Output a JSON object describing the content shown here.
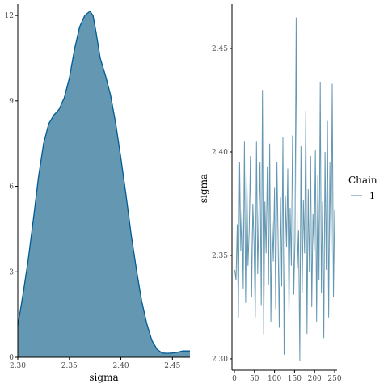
{
  "chart_data": [
    {
      "type": "area",
      "xlabel": "sigma",
      "ylabel": "",
      "xlim": [
        2.3,
        2.467
      ],
      "ylim": [
        0,
        12.4
      ],
      "xticks": [
        2.3,
        2.35,
        2.4,
        2.45
      ],
      "xtick_labels": [
        "2.30",
        "2.35",
        "2.40",
        "2.45"
      ],
      "yticks": [
        0,
        3,
        6,
        9,
        12
      ],
      "ytick_labels": [
        "0",
        "3",
        "6",
        "9",
        "12"
      ],
      "fill_color": "#6497b1",
      "line_color": "#005b96",
      "x": [
        2.3,
        2.305,
        2.31,
        2.315,
        2.32,
        2.325,
        2.33,
        2.335,
        2.34,
        2.345,
        2.35,
        2.355,
        2.36,
        2.365,
        2.37,
        2.373,
        2.376,
        2.38,
        2.385,
        2.39,
        2.395,
        2.4,
        2.405,
        2.41,
        2.415,
        2.42,
        2.425,
        2.43,
        2.435,
        2.44,
        2.445,
        2.45,
        2.455,
        2.46,
        2.467
      ],
      "y": [
        1.1,
        2.2,
        3.4,
        4.8,
        6.3,
        7.5,
        8.2,
        8.5,
        8.7,
        9.1,
        9.8,
        10.8,
        11.6,
        12.0,
        12.15,
        12.0,
        11.4,
        10.5,
        9.9,
        9.2,
        8.2,
        7.0,
        5.7,
        4.3,
        3.1,
        2.0,
        1.2,
        0.6,
        0.28,
        0.15,
        0.14,
        0.15,
        0.18,
        0.22,
        0.22
      ]
    },
    {
      "type": "line",
      "xlabel": "",
      "ylabel": "sigma",
      "xlim": [
        -6,
        256
      ],
      "ylim": [
        2.2945,
        2.4715
      ],
      "xticks": [
        0,
        50,
        100,
        150,
        200,
        250
      ],
      "xtick_labels": [
        "0",
        "50",
        "100",
        "150",
        "200",
        "250"
      ],
      "yticks": [
        2.3,
        2.35,
        2.4,
        2.45
      ],
      "ytick_labels": [
        "2.30",
        "2.35",
        "2.40",
        "2.45"
      ],
      "legend_position": "right",
      "legend_title": "Chain",
      "series": [
        {
          "name": "1",
          "color": "#6497b1",
          "x": [
            1,
            4,
            7,
            10,
            13,
            16,
            19,
            22,
            25,
            28,
            31,
            34,
            37,
            40,
            43,
            46,
            49,
            52,
            55,
            58,
            61,
            64,
            67,
            70,
            73,
            76,
            79,
            82,
            85,
            88,
            91,
            94,
            97,
            100,
            103,
            106,
            109,
            112,
            115,
            118,
            121,
            124,
            127,
            130,
            133,
            136,
            139,
            142,
            145,
            148,
            151,
            154,
            157,
            160,
            163,
            166,
            169,
            172,
            175,
            178,
            181,
            184,
            187,
            190,
            193,
            196,
            199,
            202,
            205,
            208,
            211,
            214,
            217,
            220,
            223,
            226,
            229,
            232,
            235,
            238,
            241,
            244,
            247,
            250
          ],
          "values": [
            2.343,
            2.338,
            2.365,
            2.32,
            2.395,
            2.352,
            2.372,
            2.334,
            2.405,
            2.327,
            2.388,
            2.345,
            2.362,
            2.398,
            2.33,
            2.375,
            2.356,
            2.32,
            2.405,
            2.341,
            2.368,
            2.395,
            2.326,
            2.43,
            2.312,
            2.376,
            2.351,
            2.393,
            2.336,
            2.404,
            2.318,
            2.367,
            2.347,
            2.383,
            2.324,
            2.395,
            2.356,
            2.315,
            2.378,
            2.335,
            2.407,
            2.302,
            2.379,
            2.354,
            2.392,
            2.321,
            2.373,
            2.345,
            2.408,
            2.331,
            2.357,
            2.465,
            2.344,
            2.362,
            2.299,
            2.403,
            2.332,
            2.377,
            2.351,
            2.42,
            2.312,
            2.382,
            2.342,
            2.398,
            2.325,
            2.37,
            2.352,
            2.401,
            2.318,
            2.389,
            2.338,
            2.434,
            2.332,
            2.376,
            2.31,
            2.4,
            2.343,
            2.415,
            2.32,
            2.395,
            2.351,
            2.433,
            2.33,
            2.372
          ]
        }
      ]
    }
  ]
}
